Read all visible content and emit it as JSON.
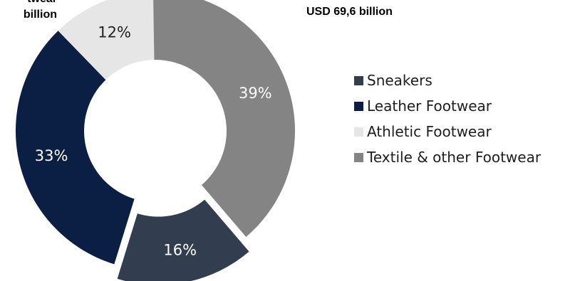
{
  "chart_data": {
    "type": "pie",
    "subtype": "donut",
    "slices": [
      {
        "name": "Sneakers",
        "value": 16,
        "label": "16%",
        "color": "#323e50",
        "exploded": true
      },
      {
        "name": "Leather Footwear",
        "value": 33,
        "label": "33%",
        "color": "#0b1f45",
        "exploded": false
      },
      {
        "name": "Athletic Footwear",
        "value": 12,
        "label": "12%",
        "color": "#e6e6e6",
        "exploded": false
      },
      {
        "name": "Textile & other Footwear",
        "value": 39,
        "label": "39%",
        "color": "#848484",
        "exploded": false
      }
    ],
    "legend_position": "right",
    "annotations": {
      "left_line1": "twear",
      "left_line2": "billion",
      "right": "USD 69,6 billion"
    }
  }
}
